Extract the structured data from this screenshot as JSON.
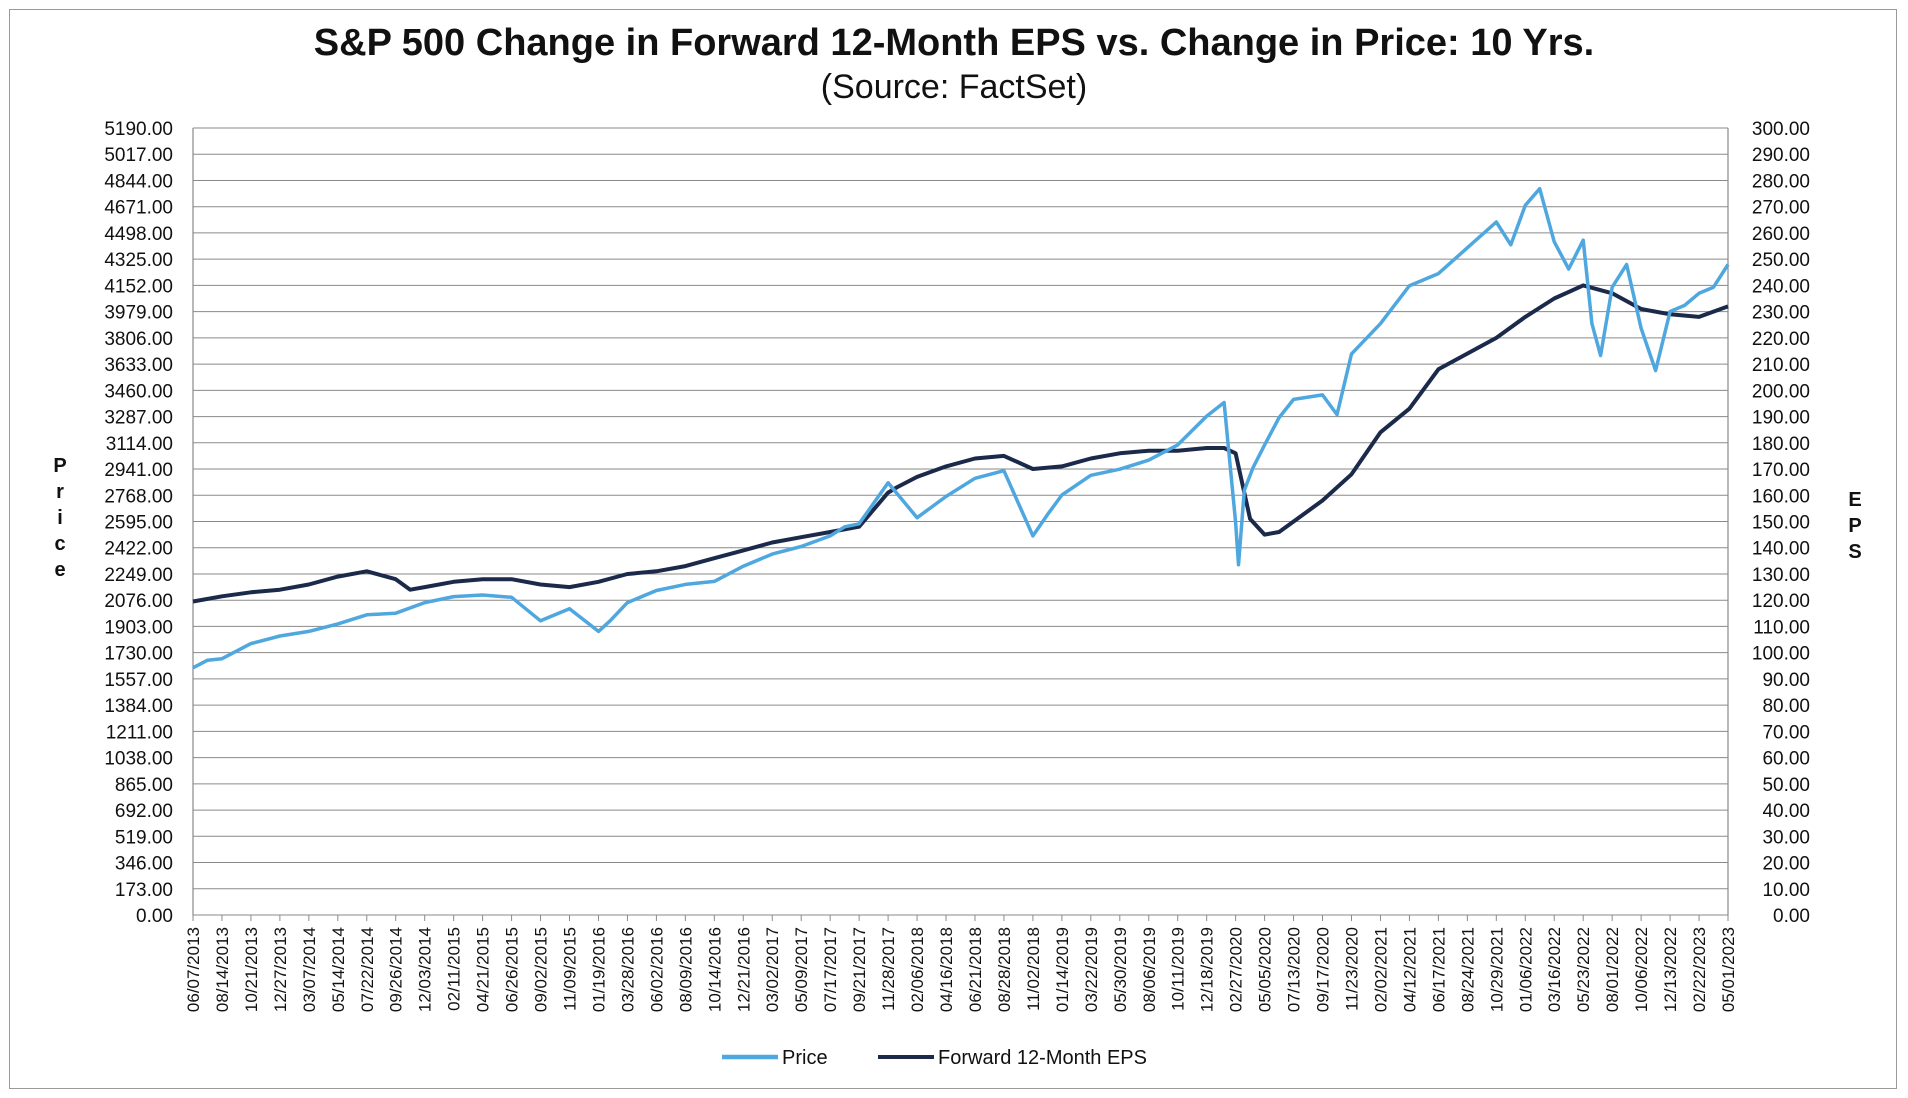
{
  "chart_data": {
    "type": "line",
    "title": "S&P 500 Change in Forward 12-Month EPS vs. Change in Price: 10 Yrs.",
    "subtitle": "(Source: FactSet)",
    "ylabel_left": "Price",
    "ylabel_right": "EPS",
    "y_left_lim": [
      0,
      5190
    ],
    "y_right_lim": [
      0,
      300
    ],
    "y_left_ticks": [
      "0.00",
      "173.00",
      "346.00",
      "519.00",
      "692.00",
      "865.00",
      "1038.00",
      "1211.00",
      "1384.00",
      "1557.00",
      "1730.00",
      "1903.00",
      "2076.00",
      "2249.00",
      "2422.00",
      "2595.00",
      "2768.00",
      "2941.00",
      "3114.00",
      "3287.00",
      "3460.00",
      "3633.00",
      "3806.00",
      "3979.00",
      "4152.00",
      "4325.00",
      "4498.00",
      "4671.00",
      "4844.00",
      "5017.00",
      "5190.00"
    ],
    "y_right_ticks": [
      "0.00",
      "10.00",
      "20.00",
      "30.00",
      "40.00",
      "50.00",
      "60.00",
      "70.00",
      "80.00",
      "90.00",
      "100.00",
      "110.00",
      "120.00",
      "130.00",
      "140.00",
      "150.00",
      "160.00",
      "170.00",
      "180.00",
      "190.00",
      "200.00",
      "210.00",
      "220.00",
      "230.00",
      "240.00",
      "250.00",
      "260.00",
      "270.00",
      "280.00",
      "290.00",
      "300.00"
    ],
    "x_ticks": [
      "06/07/2013",
      "08/14/2013",
      "10/21/2013",
      "12/27/2013",
      "03/07/2014",
      "05/14/2014",
      "07/22/2014",
      "09/26/2014",
      "12/03/2014",
      "02/11/2015",
      "04/21/2015",
      "06/26/2015",
      "09/02/2015",
      "11/09/2015",
      "01/19/2016",
      "03/28/2016",
      "06/02/2016",
      "08/09/2016",
      "10/14/2016",
      "12/21/2016",
      "03/02/2017",
      "05/09/2017",
      "07/17/2017",
      "09/21/2017",
      "11/28/2017",
      "02/06/2018",
      "04/16/2018",
      "06/21/2018",
      "08/28/2018",
      "11/02/2018",
      "01/14/2019",
      "03/22/2019",
      "05/30/2019",
      "08/06/2019",
      "10/11/2019",
      "12/18/2019",
      "02/27/2020",
      "05/05/2020",
      "07/13/2020",
      "09/17/2020",
      "11/23/2020",
      "02/02/2021",
      "04/12/2021",
      "06/17/2021",
      "08/24/2021",
      "10/29/2021",
      "01/06/2022",
      "03/16/2022",
      "05/23/2022",
      "08/01/2022",
      "10/06/2022",
      "12/13/2022",
      "02/22/2023",
      "05/01/2023"
    ],
    "grid": true,
    "legend_position": "bottom",
    "series": [
      {
        "name": "Price",
        "axis": "left",
        "color": "#4fa7e0",
        "x": [
          0,
          0.5,
          1,
          2,
          3,
          4,
          5,
          6,
          7,
          8,
          9,
          10,
          11,
          12,
          13,
          14,
          14.4,
          15,
          16,
          17,
          18,
          19,
          20,
          21,
          22,
          22.5,
          23,
          24,
          25,
          25.5,
          26,
          27,
          28,
          29,
          29.5,
          30,
          31,
          32,
          33,
          34,
          35,
          35.6,
          36,
          36.1,
          36.3,
          36.6,
          37,
          37.5,
          38,
          39,
          39.5,
          40,
          41,
          42,
          43,
          44,
          45,
          45.5,
          46,
          46.5,
          47,
          47.5,
          48,
          48.3,
          48.6,
          49,
          49.5,
          50,
          50.5,
          51,
          51.5,
          52,
          52.5,
          53
        ],
        "values": [
          1630,
          1680,
          1690,
          1790,
          1840,
          1870,
          1920,
          1980,
          1990,
          2060,
          2100,
          2110,
          2095,
          1940,
          2020,
          1870,
          1940,
          2060,
          2140,
          2180,
          2200,
          2300,
          2380,
          2430,
          2500,
          2560,
          2580,
          2850,
          2620,
          2690,
          2760,
          2880,
          2930,
          2500,
          2640,
          2770,
          2900,
          2940,
          3000,
          3100,
          3290,
          3380,
          2590,
          2310,
          2800,
          2950,
          3100,
          3280,
          3400,
          3430,
          3300,
          3700,
          3900,
          4150,
          4230,
          4400,
          4570,
          4420,
          4680,
          4790,
          4440,
          4260,
          4450,
          3900,
          3690,
          4140,
          4290,
          3870,
          3590,
          3980,
          4020,
          4100,
          4140,
          4290
        ]
      },
      {
        "name": "Forward 12-Month EPS",
        "axis": "right",
        "color": "#1b2a4a",
        "x": [
          0,
          1,
          2,
          3,
          4,
          5,
          6,
          7,
          7.5,
          8,
          9,
          10,
          11,
          12,
          13,
          14,
          15,
          16,
          17,
          18,
          19,
          20,
          21,
          22,
          23,
          24,
          24.3,
          25,
          26,
          27,
          28,
          29,
          30,
          31,
          32,
          33,
          34,
          35,
          35.6,
          36,
          36.5,
          37,
          37.5,
          38,
          39,
          40,
          41,
          42,
          43,
          44,
          45,
          46,
          47,
          48,
          49,
          50,
          51,
          52,
          53
        ],
        "values": [
          119.5,
          121.5,
          123,
          124,
          126,
          129,
          131,
          128,
          124,
          125,
          127,
          128,
          128,
          126,
          125,
          127,
          130,
          131,
          133,
          136,
          139,
          142,
          144,
          146,
          148,
          161,
          163,
          167,
          171,
          174,
          175,
          170,
          171,
          174,
          176,
          177,
          177,
          178,
          178,
          176,
          151,
          145,
          146,
          150,
          158,
          168,
          184,
          193,
          208,
          214,
          220,
          228,
          235,
          240,
          237,
          231,
          229,
          228,
          232
        ]
      }
    ]
  }
}
